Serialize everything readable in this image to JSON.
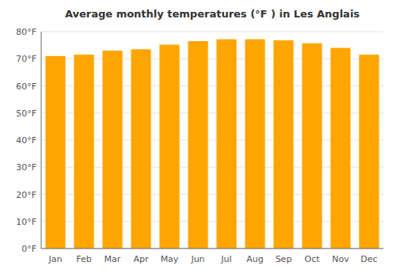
{
  "chart_data": {
    "type": "bar",
    "title": "Average monthly temperatures (°F ) in Les Anglais",
    "categories": [
      "Jan",
      "Feb",
      "Mar",
      "Apr",
      "May",
      "Jun",
      "Jul",
      "Aug",
      "Sep",
      "Oct",
      "Nov",
      "Dec"
    ],
    "values": [
      71.0,
      71.5,
      73.0,
      73.5,
      75.2,
      76.5,
      77.2,
      77.2,
      76.8,
      75.7,
      74.0,
      71.5
    ],
    "color": "#FFA500",
    "ylim": [
      0,
      80
    ],
    "yticks": [
      {
        "value": 0,
        "label": "0°F"
      },
      {
        "value": 10,
        "label": "10°F"
      },
      {
        "value": 20,
        "label": "20°F"
      },
      {
        "value": 30,
        "label": "30°F"
      },
      {
        "value": 40,
        "label": "40°F"
      },
      {
        "value": 50,
        "label": "50°F"
      },
      {
        "value": 60,
        "label": "60°F"
      },
      {
        "value": 70,
        "label": "70°F"
      },
      {
        "value": 80,
        "label": "80°F"
      }
    ],
    "grid": true
  }
}
